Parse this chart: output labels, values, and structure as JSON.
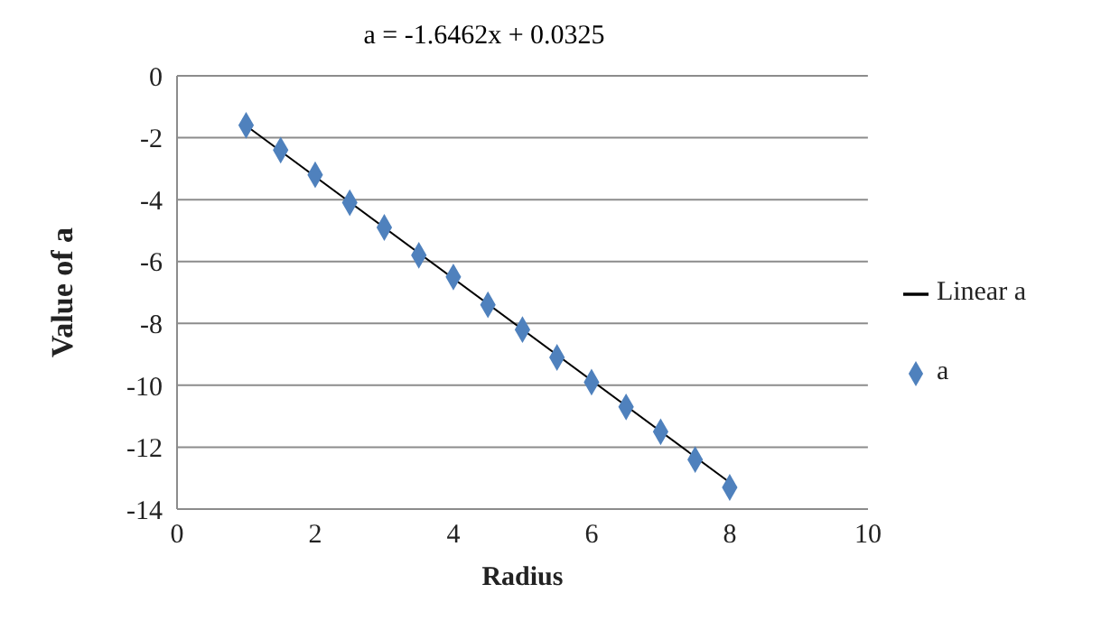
{
  "chart_data": {
    "type": "scatter",
    "title": "a = -1.6462x + 0.0325",
    "xlabel": "Radius",
    "ylabel": "Value of a",
    "x": [
      1,
      1.5,
      2,
      2.5,
      3,
      3.5,
      4,
      4.5,
      5,
      5.5,
      6,
      6.5,
      7,
      7.5,
      8
    ],
    "series": [
      {
        "name": "a",
        "color": "#4f81bd",
        "marker": "diamond",
        "values": [
          -1.6,
          -2.4,
          -3.2,
          -4.1,
          -4.9,
          -5.8,
          -6.5,
          -7.4,
          -8.2,
          -9.1,
          -9.9,
          -10.7,
          -11.5,
          -12.4,
          -13.3
        ]
      },
      {
        "name": "Linear a",
        "type": "line",
        "color": "#000000",
        "marker": "none",
        "x": [
          1,
          8
        ],
        "values": [
          -1.61,
          -13.14
        ]
      }
    ],
    "xlim": [
      0,
      10
    ],
    "xticks": [
      0,
      2,
      4,
      6,
      8,
      10
    ],
    "ylim": [
      -14,
      0
    ],
    "yticks": [
      -14,
      -12,
      -10,
      -8,
      -6,
      -4,
      -2,
      0
    ],
    "grid": "y",
    "legend": "right"
  }
}
